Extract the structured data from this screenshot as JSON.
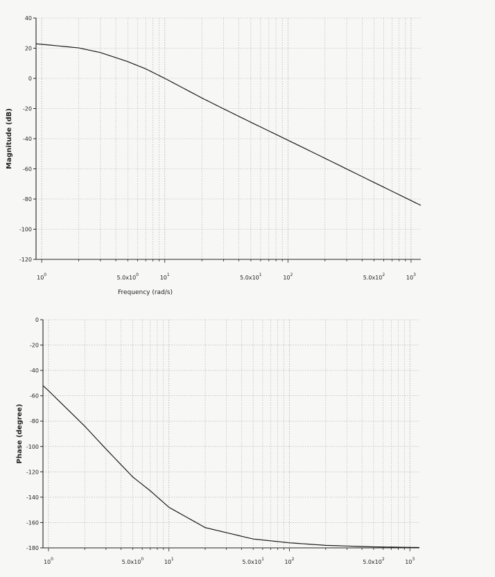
{
  "chart_data": [
    {
      "type": "line",
      "title": "",
      "xlabel": "Frequency (rad/s)",
      "ylabel": "Magnitude (dB)",
      "xscale": "log",
      "xlim": [
        0.9,
        1200
      ],
      "ylim": [
        -120,
        40
      ],
      "grid": true,
      "yticks": [
        40,
        20,
        0,
        -20,
        -40,
        -60,
        -80,
        -100,
        -120
      ],
      "xticks": [
        {
          "value": 1,
          "base": "10",
          "exp": "0"
        },
        {
          "value": 5,
          "base": "5.0x10",
          "exp": "0"
        },
        {
          "value": 10,
          "base": "10",
          "exp": "1"
        },
        {
          "value": 50,
          "base": "5.0x10",
          "exp": "1"
        },
        {
          "value": 100,
          "base": "10",
          "exp": "2"
        },
        {
          "value": 500,
          "base": "5.0x10",
          "exp": "2"
        },
        {
          "value": 1000,
          "base": "10",
          "exp": "3"
        }
      ],
      "series": [
        {
          "x": [
            0.9,
            1,
            2,
            3,
            5,
            7,
            10,
            20,
            30,
            50,
            100,
            200,
            500,
            1000,
            1200
          ],
          "y": [
            22.9,
            22.6,
            20.2,
            17.1,
            11.1,
            6.3,
            0.0,
            -13.0,
            -20.2,
            -29.1,
            -41.0,
            -53.0,
            -69.0,
            -81.0,
            -84.2
          ]
        }
      ]
    },
    {
      "type": "line",
      "title": "",
      "xlabel": "",
      "ylabel": "Phase (degree)",
      "xscale": "log",
      "xlim": [
        0.9,
        1200
      ],
      "ylim": [
        -180,
        0
      ],
      "grid": true,
      "yticks": [
        0,
        -20,
        -40,
        -60,
        -80,
        -100,
        -120,
        -140,
        -160,
        -180
      ],
      "xticks": [
        {
          "value": 1,
          "base": "10",
          "exp": "0"
        },
        {
          "value": 5,
          "base": "5.0x10",
          "exp": "0"
        },
        {
          "value": 10,
          "base": "10",
          "exp": "1"
        },
        {
          "value": 50,
          "base": "5.0x10",
          "exp": "1"
        },
        {
          "value": 100,
          "base": "10",
          "exp": "2"
        },
        {
          "value": 500,
          "base": "5.0x10",
          "exp": "2"
        },
        {
          "value": 1000,
          "base": "10",
          "exp": "3"
        }
      ],
      "series": [
        {
          "x": [
            0.9,
            1,
            2,
            3,
            5,
            7,
            10,
            20,
            30,
            50,
            100,
            200,
            500,
            1000,
            1200
          ],
          "y": [
            -52,
            -56,
            -84,
            -102,
            -124,
            -135,
            -148,
            -164,
            -168,
            -173,
            -176,
            -178,
            -179.2,
            -179.6,
            -179.7
          ]
        }
      ]
    }
  ],
  "colors": {
    "background": "#f7f7f5",
    "axis": "#222222",
    "grid": "#a8a8a8",
    "line": "#1a1a1a"
  }
}
